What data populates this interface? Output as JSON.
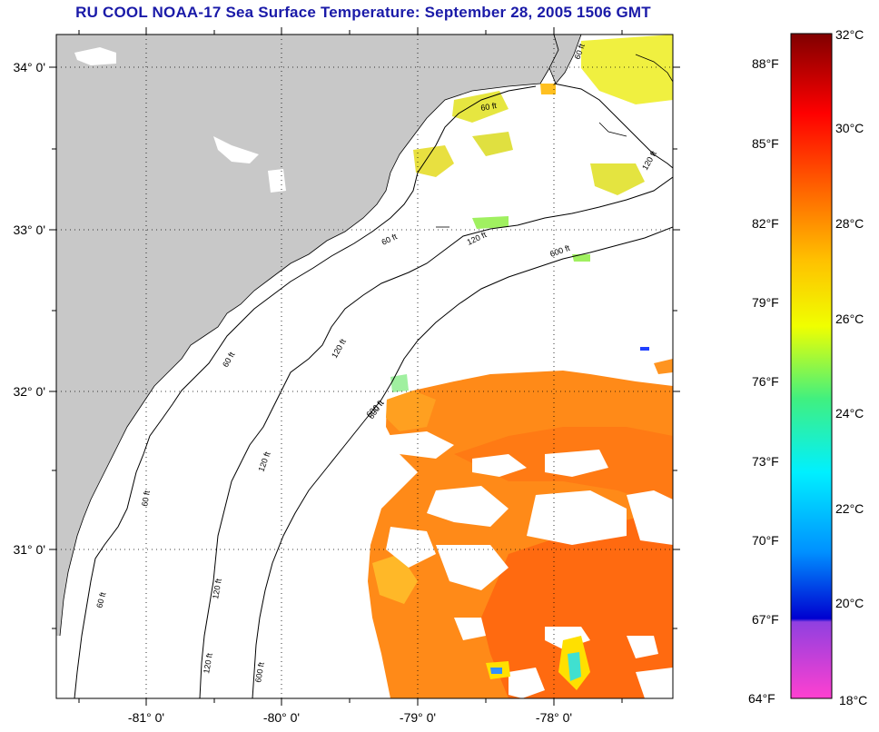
{
  "title": "RU COOL  NOAA-17  Sea Surface Temperature:  September 28, 2005 1506 GMT",
  "map": {
    "lat_labels": [
      "34° 0'",
      "33° 0'",
      "32° 0'",
      "31° 0'"
    ],
    "lon_labels": [
      "-81° 0'",
      "-80° 0'",
      "-79° 0'",
      "-78° 0'"
    ],
    "contour_labels": [
      "60 ft",
      "120 ft",
      "600 ft",
      "60 ft",
      "120 ft",
      "600 ft",
      "60 ft",
      "120 ft",
      "600 ft",
      "60 ft",
      "120 ft",
      "60 ft",
      "120 ft",
      "600 ft",
      "60 ft",
      "120 ft"
    ],
    "colors": {
      "land": "#c8c8c8",
      "cloud": "#ffffff",
      "ocean_warm": "#ff7a10"
    }
  },
  "colorbar": {
    "fahrenheit": [
      "88°F",
      "85°F",
      "82°F",
      "79°F",
      "76°F",
      "73°F",
      "70°F",
      "67°F",
      "64°F"
    ],
    "celsius": [
      "32°C",
      "30°C",
      "28°C",
      "26°C",
      "24°C",
      "22°C",
      "20°C",
      "18°C"
    ]
  }
}
